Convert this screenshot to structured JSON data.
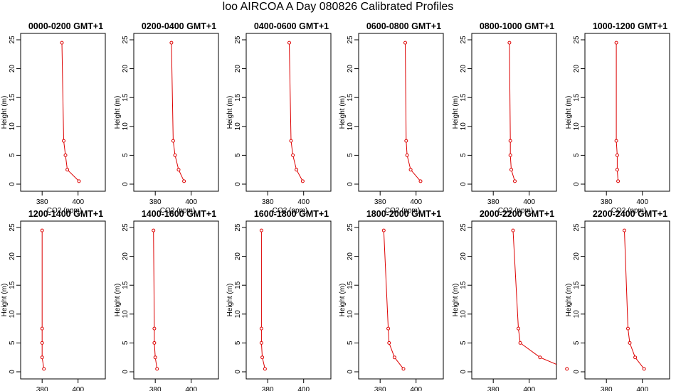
{
  "title": "loo AIRCOA A  Day 080826  Calibrated Profiles",
  "chart_data": {
    "type": "line",
    "xlabel": "CO2 (ppm)",
    "ylabel": "Height (m)",
    "xlim": [
      372,
      412
    ],
    "ylim": [
      0,
      25
    ],
    "xticks": [
      380,
      400
    ],
    "yticks": [
      0,
      5,
      10,
      15,
      20,
      25
    ],
    "grid": false,
    "color": "#dd0000",
    "panels": [
      {
        "title": "0000-0200 GMT+1",
        "x": [
          391,
          392,
          393,
          394,
          400.5
        ],
        "y": [
          24.5,
          7.5,
          5.0,
          2.5,
          0.5
        ]
      },
      {
        "title": "0200-0400 GMT+1",
        "x": [
          389,
          390,
          391,
          393,
          396
        ],
        "y": [
          24.5,
          7.5,
          5.0,
          2.5,
          0.5
        ]
      },
      {
        "title": "0400-0600 GMT+1",
        "x": [
          392,
          393,
          394,
          396,
          399.5
        ],
        "y": [
          24.5,
          7.5,
          5.0,
          2.5,
          0.5
        ]
      },
      {
        "title": "0600-0800 GMT+1",
        "x": [
          394,
          394.5,
          395,
          397,
          402.5
        ],
        "y": [
          24.5,
          7.5,
          5.0,
          2.5,
          0.5
        ]
      },
      {
        "title": "0800-1000 GMT+1",
        "x": [
          389,
          389.5,
          389.5,
          390,
          392
        ],
        "y": [
          24.5,
          7.5,
          5.0,
          2.5,
          0.5
        ]
      },
      {
        "title": "1000-1200 GMT+1",
        "x": [
          385.5,
          385.5,
          386,
          386,
          386.5
        ],
        "y": [
          24.5,
          7.5,
          5.0,
          2.5,
          0.5
        ]
      },
      {
        "title": "1200-1400 GMT+1",
        "x": [
          380,
          380,
          380,
          380,
          381
        ],
        "y": [
          24.5,
          7.5,
          5.0,
          2.5,
          0.5
        ]
      },
      {
        "title": "1400-1600 GMT+1",
        "x": [
          379,
          379.5,
          379.5,
          380,
          381
        ],
        "y": [
          24.5,
          7.5,
          5.0,
          2.5,
          0.5
        ]
      },
      {
        "title": "1600-1800 GMT+1",
        "x": [
          376.5,
          376.5,
          376.5,
          377,
          378.5
        ],
        "y": [
          24.5,
          7.5,
          5.0,
          2.5,
          0.5
        ]
      },
      {
        "title": "1800-2000 GMT+1",
        "x": [
          382,
          384.5,
          385,
          388,
          393
        ],
        "y": [
          24.5,
          7.5,
          5.0,
          2.5,
          0.5
        ]
      },
      {
        "title": "2000-2200 GMT+1",
        "x": [
          391,
          394,
          395,
          406,
          421
        ],
        "y": [
          24.5,
          7.5,
          5.0,
          2.5,
          0.5
        ]
      },
      {
        "title": "2200-2400 GMT+1",
        "x": [
          390,
          392,
          393,
          396,
          401
        ],
        "y": [
          24.5,
          7.5,
          5.0,
          2.5,
          0.5
        ]
      }
    ]
  }
}
